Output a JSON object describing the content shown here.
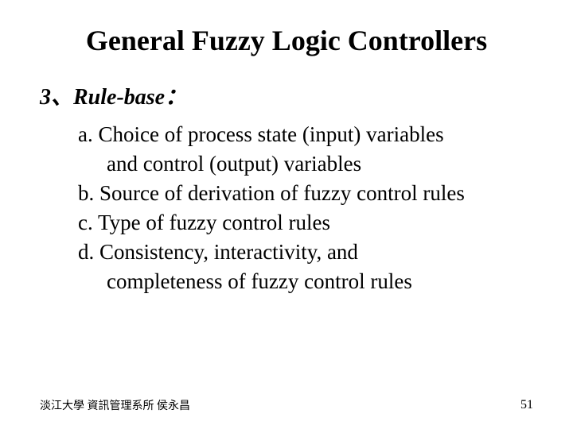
{
  "slide": {
    "title": "General Fuzzy Logic Controllers",
    "section_header": "3、Rule-base：",
    "items": [
      {
        "label": "a.",
        "text1": "Choice of process state (input) variables",
        "text2": "and control (output) variables"
      },
      {
        "label": "b.",
        "text1": "Source of derivation of fuzzy control rules"
      },
      {
        "label": "c.",
        "text1": "Type of fuzzy control rules"
      },
      {
        "label": "d.",
        "text1": "Consistency, interactivity, and",
        "text2": "completeness of fuzzy control rules"
      }
    ],
    "footer_left": "淡江大學  資訊管理系所  侯永昌",
    "page_number": "51"
  },
  "style": {
    "background_color": "#ffffff",
    "text_color": "#000000",
    "title_fontsize": 36,
    "section_fontsize": 28,
    "item_fontsize": 27,
    "footer_fontsize": 14
  }
}
